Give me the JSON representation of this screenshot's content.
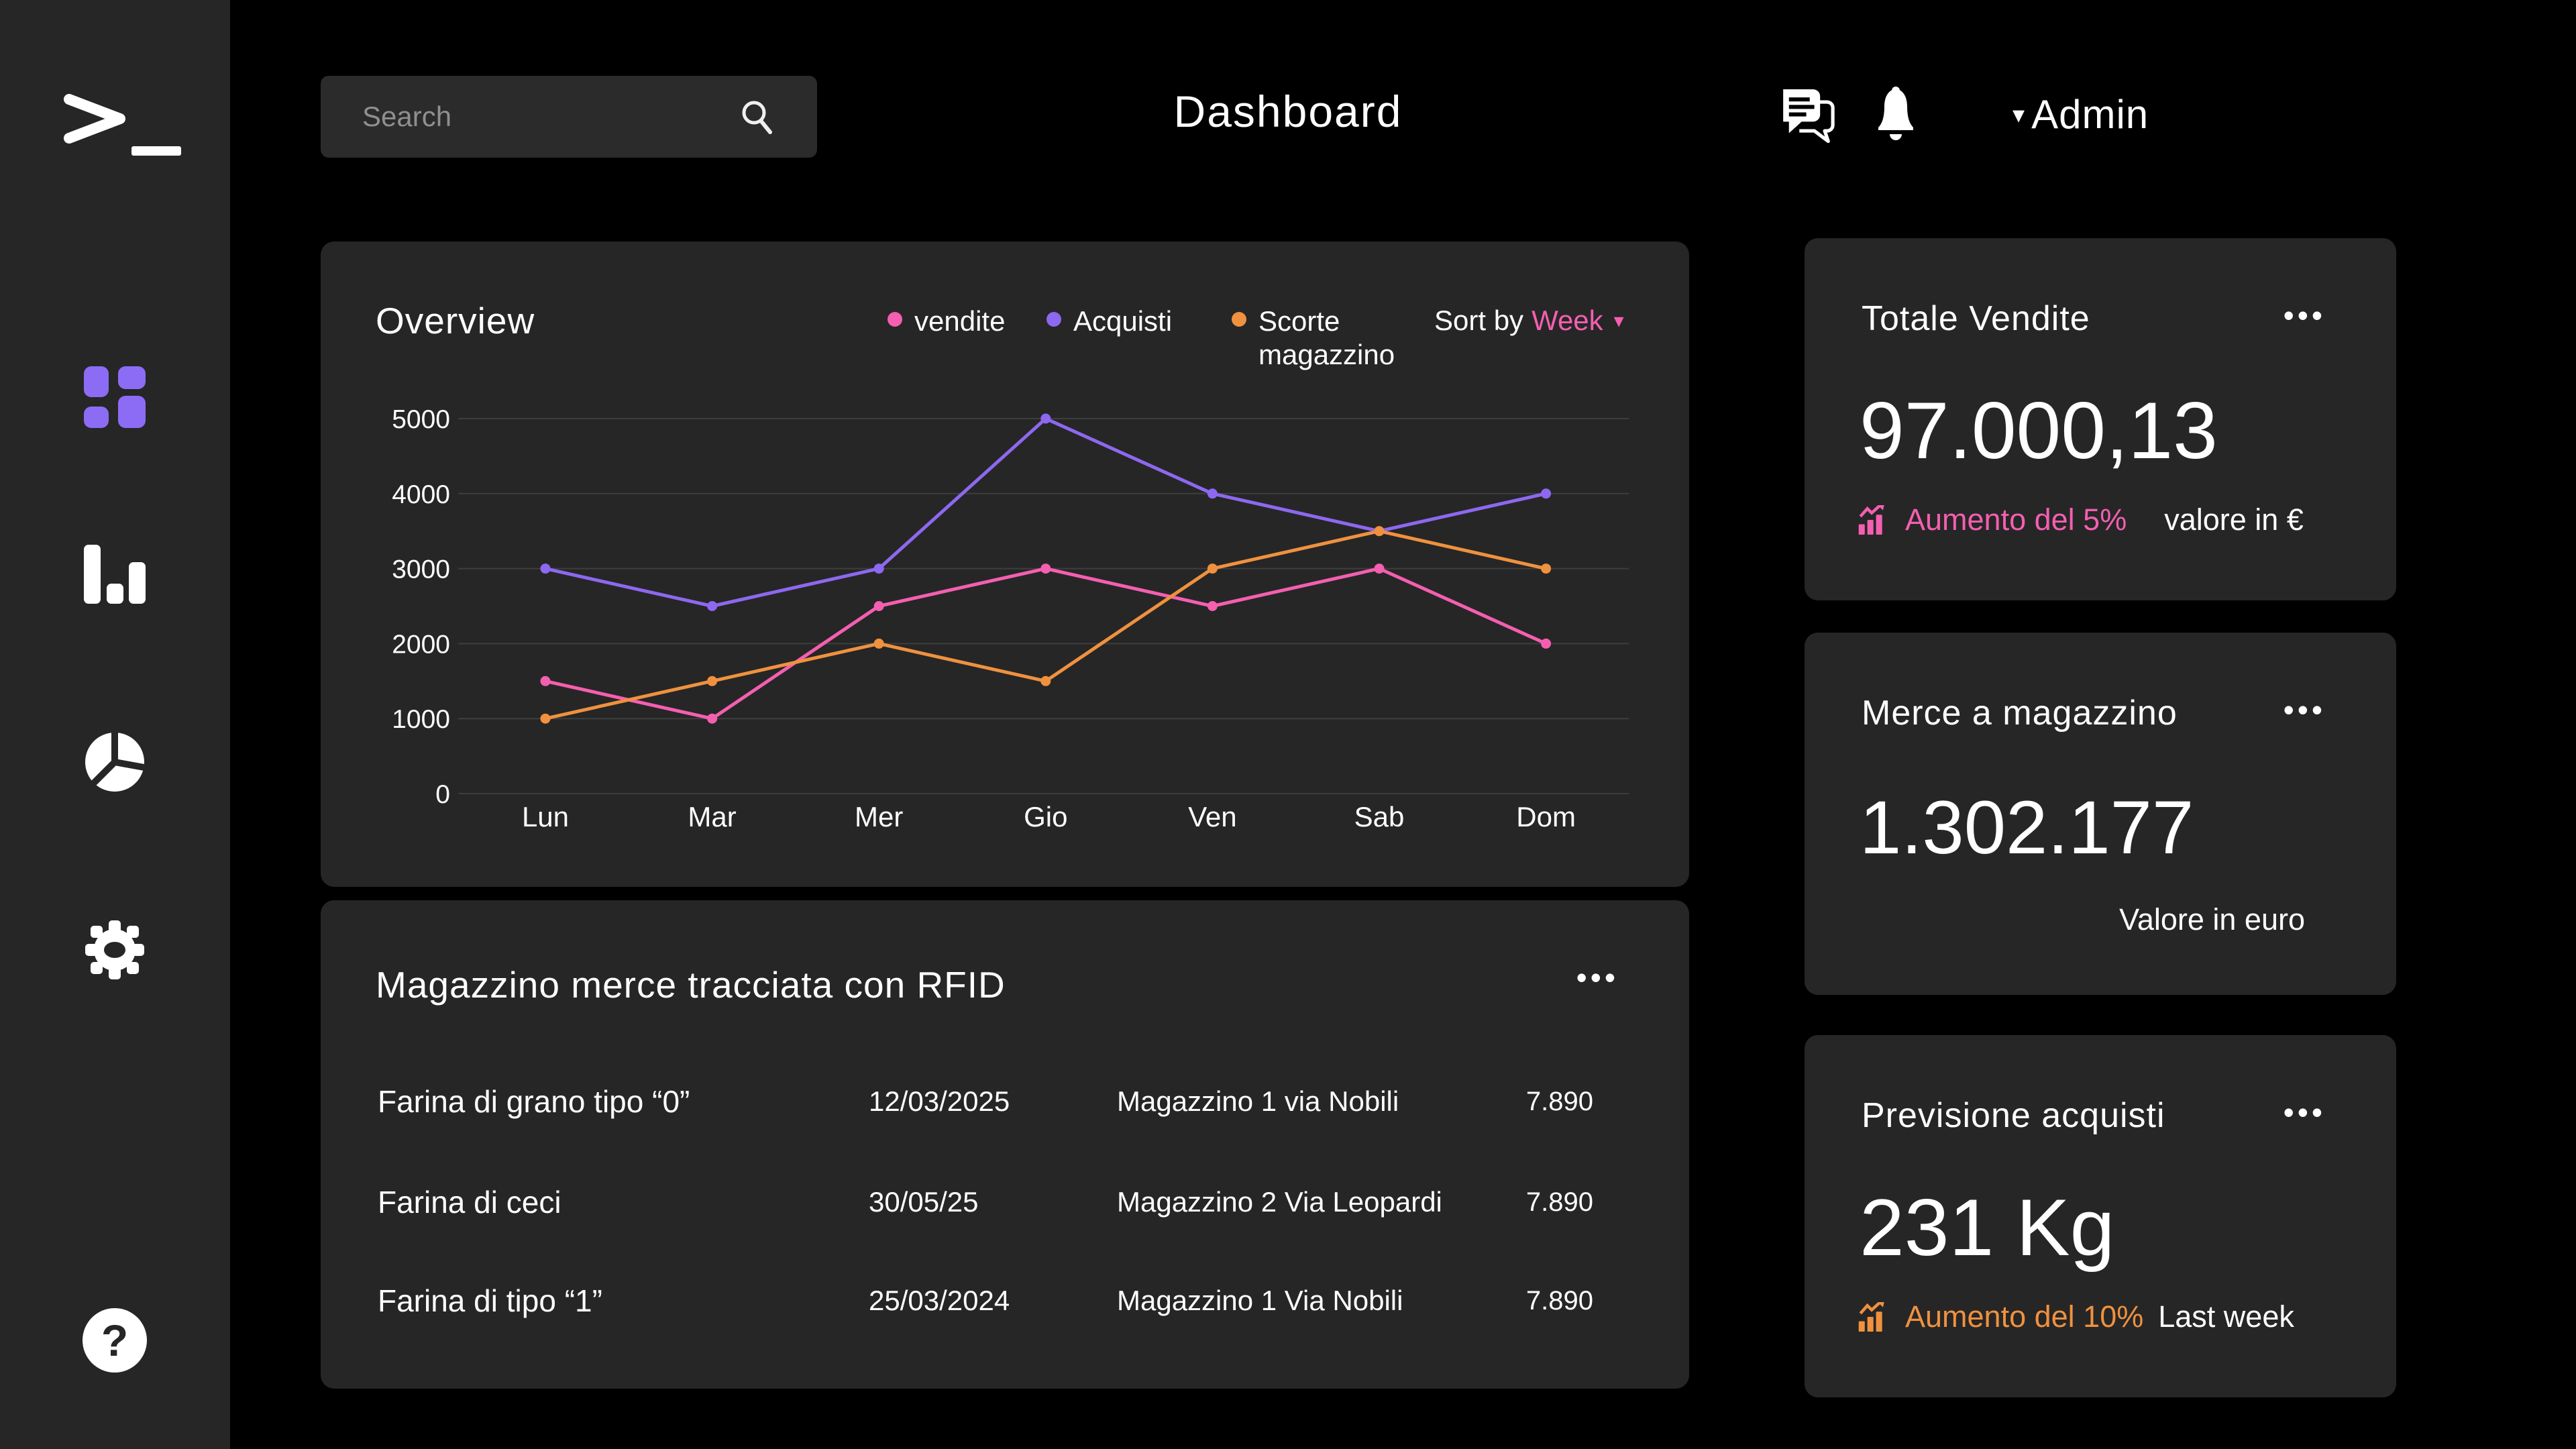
{
  "topbar": {
    "search_placeholder": "Search",
    "title": "Dashboard",
    "user_label": "Admin"
  },
  "icons": {
    "caret_down": "▾",
    "menu_dots": "•••"
  },
  "overview": {
    "title": "Overview",
    "sort_by_label": "Sort by",
    "sort_value": "Week"
  },
  "chart_data": {
    "type": "line",
    "title": "Overview",
    "categories": [
      "Lun",
      "Mar",
      "Mer",
      "Gio",
      "Ven",
      "Sab",
      "Dom"
    ],
    "series": [
      {
        "name": "vendite",
        "color": "#f45fb0",
        "values": [
          1500,
          1000,
          2500,
          3000,
          2500,
          3000,
          2000
        ]
      },
      {
        "name": "Acquisti",
        "color": "#8d68f0",
        "values": [
          3000,
          2500,
          3000,
          5000,
          4000,
          3500,
          4000
        ]
      },
      {
        "name": "Scorte magazzino",
        "color": "#f0913f",
        "values": [
          1000,
          1500,
          2000,
          1500,
          3000,
          3500,
          3000
        ]
      }
    ],
    "xlabel": "",
    "ylabel": "",
    "ylim": [
      0,
      5000
    ],
    "yticks": [
      0,
      1000,
      2000,
      3000,
      4000,
      5000
    ],
    "grid": true,
    "legend_position": "top"
  },
  "table": {
    "title": "Magazzino merce tracciata con RFID",
    "rows": [
      {
        "product": "Farina di grano tipo “0”",
        "date": "12/03/2025",
        "location": "Magazzino 1 via Nobili",
        "qty": "7.890"
      },
      {
        "product": "Farina di ceci",
        "date": "30/05/25",
        "location": "Magazzino 2 Via Leopardi",
        "qty": "7.890"
      },
      {
        "product": "Farina di tipo “1”",
        "date": "25/03/2024",
        "location": "Magazzino 1 Via Nobili",
        "qty": "7.890"
      }
    ]
  },
  "cards": [
    {
      "title": "Totale Vendite",
      "value": "97.000,13",
      "trend": "Aumento del 5%",
      "trend_color": "#f45fb0",
      "note": "valore in €"
    },
    {
      "title": "Merce a magazzino",
      "value": "1.302.177",
      "note": "Valore in euro"
    },
    {
      "title": "Previsione acquisti",
      "value": "231 Kg",
      "trend": "Aumento del 10%",
      "trend_color": "#f0913f",
      "note": "Last week"
    }
  ],
  "colors": {
    "background": "#000000",
    "panel": "#262626",
    "gridline": "#3e3e3e",
    "accent_pink": "#f45fb0",
    "accent_purple": "#8d68f0",
    "accent_orange": "#f0913f"
  }
}
